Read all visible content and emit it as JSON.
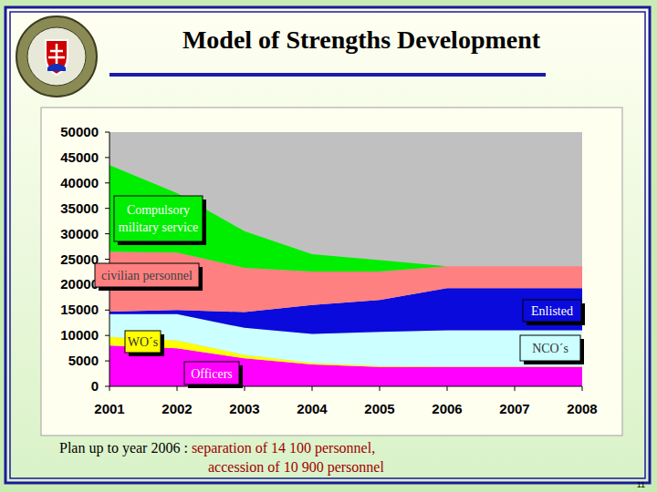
{
  "chart_data": {
    "type": "area",
    "title": "Model of Strengths Development",
    "categories": [
      "2001",
      "2002",
      "2003",
      "2004",
      "2005",
      "2006",
      "2007",
      "2008"
    ],
    "series": [
      {
        "name": "Officers",
        "color": "#ff00ff",
        "values": [
          8000,
          7500,
          5500,
          4300,
          3800,
          3800,
          3800,
          3800
        ]
      },
      {
        "name": "WO´s",
        "color": "#ffff00",
        "values": [
          1700,
          1500,
          700,
          300,
          200,
          100,
          100,
          100
        ]
      },
      {
        "name": "NCO´s",
        "color": "#ccffff",
        "values": [
          4500,
          5200,
          5300,
          5700,
          6700,
          7100,
          7100,
          7100
        ]
      },
      {
        "name": "Enlisted",
        "color": "#0a0adc",
        "values": [
          500,
          800,
          3100,
          5700,
          6300,
          8300,
          8300,
          8300
        ]
      },
      {
        "name": "civilian personnel",
        "color": "#ff8080",
        "values": [
          11800,
          11300,
          8700,
          6600,
          5600,
          4300,
          4300,
          4300
        ]
      },
      {
        "name": "Compulsory military service",
        "color": "#00ee00",
        "values": [
          17000,
          11700,
          7200,
          3400,
          2200,
          0,
          0,
          0
        ]
      }
    ],
    "stacked": true,
    "grid": false,
    "ylim": [
      0,
      50000
    ],
    "yticks": [
      0,
      5000,
      10000,
      15000,
      20000,
      25000,
      30000,
      35000,
      40000,
      45000,
      50000
    ],
    "annotations": [
      "Plan up to year 2006 :",
      "separation of 14 100 personnel,",
      "accession of 10 900 personnel"
    ]
  },
  "page": {
    "number": "11"
  }
}
